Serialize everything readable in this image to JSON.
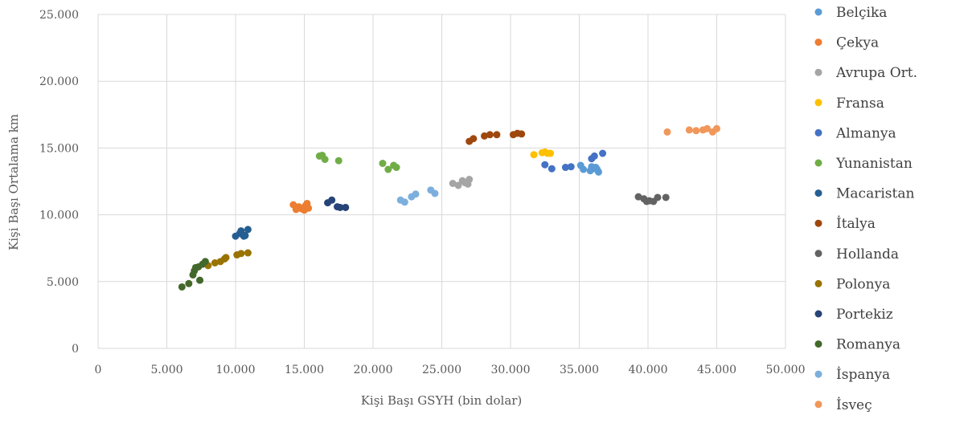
{
  "chart_data": {
    "type": "scatter",
    "xlabel": "Kişi Başı GSYH (bin dolar)",
    "ylabel": "Kişi Başı Ortalama km",
    "xlim": [
      0,
      50000
    ],
    "ylim": [
      0,
      25000
    ],
    "x_ticks": [
      0,
      5000,
      10000,
      15000,
      20000,
      25000,
      30000,
      35000,
      40000,
      45000,
      50000
    ],
    "x_tick_labels": [
      "0",
      "5.000",
      "10.000",
      "15.000",
      "20.000",
      "25.000",
      "30.000",
      "35.000",
      "40.000",
      "45.000",
      "50.000"
    ],
    "y_ticks": [
      0,
      5000,
      10000,
      15000,
      20000,
      25000
    ],
    "y_tick_labels": [
      "0",
      "5.000",
      "10.000",
      "15.000",
      "20.000",
      "25.000"
    ],
    "grid": true,
    "legend_position": "right",
    "series": [
      {
        "name": "Belçika",
        "color": "#5B9BD5",
        "points": [
          [
            35100,
            13700
          ],
          [
            35300,
            13400
          ],
          [
            35800,
            13300
          ],
          [
            35900,
            13600
          ],
          [
            36000,
            13450
          ],
          [
            36100,
            13500
          ],
          [
            36200,
            13550
          ],
          [
            36300,
            13400
          ],
          [
            36400,
            13200
          ]
        ]
      },
      {
        "name": "Çekya",
        "color": "#ED7D31",
        "points": [
          [
            14200,
            10750
          ],
          [
            14400,
            10400
          ],
          [
            14600,
            10600
          ],
          [
            14800,
            10450
          ],
          [
            15000,
            10350
          ],
          [
            15100,
            10700
          ],
          [
            15200,
            10850
          ],
          [
            15300,
            10500
          ]
        ]
      },
      {
        "name": "Avrupa Ort.",
        "color": "#A5A5A5",
        "points": [
          [
            25800,
            12350
          ],
          [
            26200,
            12200
          ],
          [
            26500,
            12550
          ],
          [
            26700,
            12400
          ],
          [
            26900,
            12300
          ],
          [
            27000,
            12650
          ]
        ]
      },
      {
        "name": "Fransa",
        "color": "#FFC000",
        "points": [
          [
            31700,
            14500
          ],
          [
            32300,
            14650
          ],
          [
            32500,
            14700
          ],
          [
            32700,
            14600
          ],
          [
            32900,
            14600
          ]
        ]
      },
      {
        "name": "Almanya",
        "color": "#4472C4",
        "points": [
          [
            32500,
            13750
          ],
          [
            33000,
            13450
          ],
          [
            34000,
            13550
          ],
          [
            34400,
            13600
          ],
          [
            35900,
            14200
          ],
          [
            36100,
            14400
          ],
          [
            36700,
            14600
          ]
        ]
      },
      {
        "name": "Yunanistan",
        "color": "#70AD47",
        "points": [
          [
            16100,
            14400
          ],
          [
            16300,
            14450
          ],
          [
            16500,
            14150
          ],
          [
            17500,
            14050
          ],
          [
            20700,
            13850
          ],
          [
            21100,
            13400
          ],
          [
            21500,
            13700
          ],
          [
            21700,
            13550
          ]
        ]
      },
      {
        "name": "Macaristan",
        "color": "#255E91",
        "points": [
          [
            10000,
            8400
          ],
          [
            10300,
            8600
          ],
          [
            10400,
            8800
          ],
          [
            10600,
            8400
          ],
          [
            10700,
            8450
          ],
          [
            10900,
            8900
          ]
        ]
      },
      {
        "name": "İtalya",
        "color": "#9E480E",
        "points": [
          [
            27000,
            15500
          ],
          [
            27300,
            15700
          ],
          [
            28100,
            15900
          ],
          [
            28500,
            16000
          ],
          [
            29000,
            16000
          ],
          [
            30200,
            16000
          ],
          [
            30500,
            16100
          ],
          [
            30800,
            16050
          ]
        ]
      },
      {
        "name": "Hollanda",
        "color": "#636363",
        "points": [
          [
            39300,
            11350
          ],
          [
            39700,
            11200
          ],
          [
            39900,
            11000
          ],
          [
            40100,
            11050
          ],
          [
            40400,
            11000
          ],
          [
            40700,
            11300
          ],
          [
            41300,
            11300
          ]
        ]
      },
      {
        "name": "Polonya",
        "color": "#997300",
        "points": [
          [
            8000,
            6200
          ],
          [
            8500,
            6400
          ],
          [
            8900,
            6500
          ],
          [
            9200,
            6700
          ],
          [
            9300,
            6800
          ],
          [
            10100,
            7000
          ],
          [
            10400,
            7100
          ],
          [
            10900,
            7150
          ]
        ]
      },
      {
        "name": "Portekiz",
        "color": "#264478",
        "points": [
          [
            16700,
            10900
          ],
          [
            17000,
            11100
          ],
          [
            17400,
            10600
          ],
          [
            17600,
            10550
          ],
          [
            18000,
            10550
          ]
        ]
      },
      {
        "name": "Romanya",
        "color": "#43682B",
        "points": [
          [
            6100,
            4600
          ],
          [
            6600,
            4850
          ],
          [
            6900,
            5500
          ],
          [
            7000,
            5800
          ],
          [
            7100,
            6050
          ],
          [
            7300,
            6100
          ],
          [
            7400,
            5100
          ],
          [
            7600,
            6300
          ],
          [
            7800,
            6500
          ]
        ]
      },
      {
        "name": "İspanya",
        "color": "#7CAFDD",
        "points": [
          [
            22000,
            11100
          ],
          [
            22300,
            10950
          ],
          [
            22800,
            11350
          ],
          [
            23100,
            11550
          ],
          [
            24200,
            11850
          ],
          [
            24500,
            11600
          ]
        ]
      },
      {
        "name": "İsveç",
        "color": "#F1975A",
        "points": [
          [
            41400,
            16200
          ],
          [
            43000,
            16350
          ],
          [
            43500,
            16300
          ],
          [
            44000,
            16350
          ],
          [
            44300,
            16450
          ],
          [
            44700,
            16200
          ],
          [
            45000,
            16450
          ]
        ]
      }
    ]
  }
}
